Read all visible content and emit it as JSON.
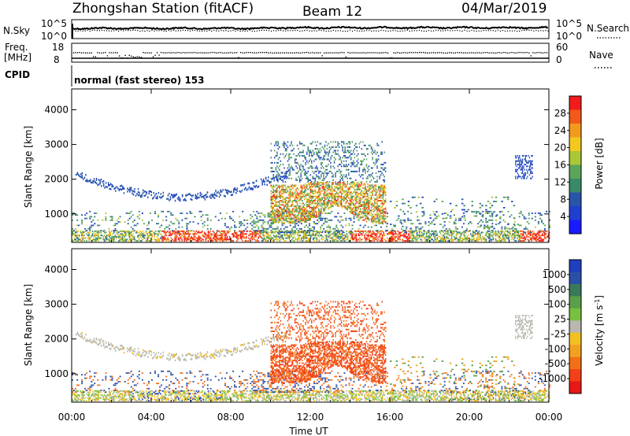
{
  "header": {
    "station": "Zhongshan Station (fitACF)",
    "beam": "Beam 12",
    "date": "04/Mar/2019"
  },
  "top_panels": {
    "nsky_label": "N.Sky",
    "nsky_ticks": [
      "10^5",
      "10^0"
    ],
    "nsearch_label": "N.Search",
    "nsearch_ticks": [
      "10^5",
      "10^0"
    ],
    "freq_label": "Freq.",
    "freq_unit": "[MHz]",
    "freq_ticks": [
      "18",
      "8"
    ],
    "nave_label": "Nave",
    "nave_ticks": [
      "60",
      "0"
    ],
    "cpid_label": "CPID",
    "cpid_text": "normal (fast stereo) 153"
  },
  "chart_data": [
    {
      "type": "heatmap",
      "title": "",
      "quantity": "Power",
      "colorbar_label": "Power [dB]",
      "colorbar_ticks": [
        "28",
        "24",
        "20",
        "16",
        "12",
        "8",
        "4"
      ],
      "colorbar_colors": [
        "#f21c1c",
        "#f15a1a",
        "#f29a1c",
        "#f2c81e",
        "#a8c838",
        "#5aa55a",
        "#3a8a6a",
        "#2855a8",
        "#1f3fcf",
        "#1a1aff"
      ],
      "ylabel": "Slant Range [km]",
      "yticks": [
        1000,
        2000,
        3000,
        4000
      ],
      "ylim": [
        180,
        4600
      ],
      "xlim": [
        0,
        24
      ],
      "xticks": [
        "00:00",
        "04:00",
        "08:00",
        "12:00",
        "16:00",
        "20:00",
        "00:00"
      ]
    },
    {
      "type": "heatmap",
      "title": "",
      "quantity": "Velocity",
      "colorbar_label": "Velocity [m s",
      "colorbar_label_sup": "-1",
      "colorbar_label_end": "]",
      "colorbar_ticks": [
        "1000",
        "500",
        "100",
        "25",
        "-25",
        "-100",
        "-500",
        "-1000"
      ],
      "colorbar_colors": [
        "#1f3fbf",
        "#2b4fa8",
        "#3a7a5a",
        "#5aa04a",
        "#7ac040",
        "#b8b8b0",
        "#f2c020",
        "#f2a020",
        "#f27018",
        "#f24018",
        "#e81818"
      ],
      "ylabel": "Slant Range [km]",
      "yticks": [
        1000,
        2000,
        3000,
        4000
      ],
      "ylim": [
        180,
        4600
      ],
      "xlim": [
        0,
        24
      ],
      "xticks": [
        "00:00",
        "04:00",
        "08:00",
        "12:00",
        "16:00",
        "20:00",
        "00:00"
      ],
      "xlabel": "Time UT"
    }
  ]
}
